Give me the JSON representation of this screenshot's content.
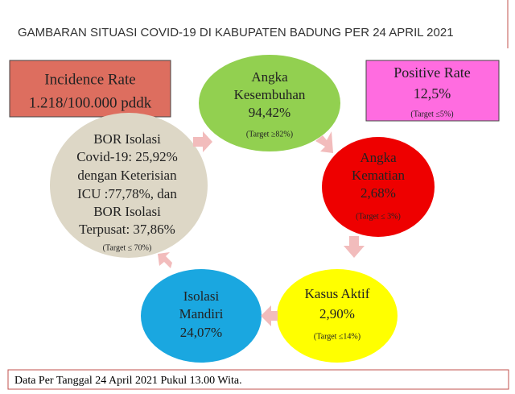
{
  "title": "GAMBARAN SITUASI COVID-19 DI KABUPATEN BADUNG PER 24 APRIL 2021",
  "nodes": [
    {
      "lines": [
        "Incidence Rate",
        "1.218/100.000 pddk"
      ]
    },
    {
      "lines": [
        "Positive Rate",
        "12,5%"
      ],
      "target": "(Target ≤5%)"
    },
    {
      "lines": [
        "Angka",
        "Kesembuhan",
        "94,42%"
      ],
      "target": "(Target ≥82%)"
    },
    {
      "lines": [
        "Angka",
        "Kematian",
        "2,68%"
      ],
      "target": "(Target ≤ 3%)"
    },
    {
      "lines": [
        "Kasus Aktif",
        "2,90%"
      ],
      "target": "(Target ≤14%)"
    },
    {
      "lines": [
        "Isolasi",
        "Mandiri",
        "24,07%"
      ]
    },
    {
      "lines": [
        "BOR Isolasi",
        "Covid-19: 25,92%",
        "dengan Keterisian",
        "ICU :77,78%, dan",
        "BOR Isolasi",
        "Terpusat: 37,86%"
      ],
      "target": "(Target ≤ 70%)"
    }
  ],
  "footer": "Data Per Tanggal 24 April 2021 Pukul 13.00 Wita."
}
